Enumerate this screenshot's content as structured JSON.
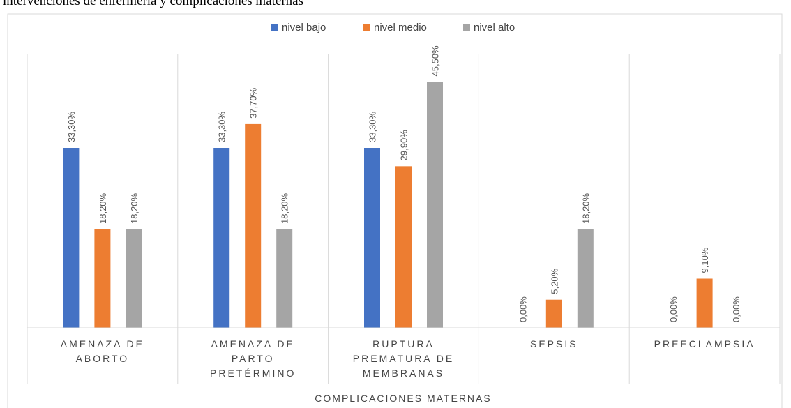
{
  "header": {
    "text": "intervenciones de enfermería y complicaciones maternas"
  },
  "chart_data": {
    "type": "bar",
    "xlabel": "COMPLICACIONES MATERNAS",
    "ylim": [
      0,
      0.5
    ],
    "grid": false,
    "legend_position": "top",
    "categories": [
      [
        "AMENAZA DE",
        "ABORTO"
      ],
      [
        "AMENAZA DE",
        "PARTO",
        "PRETÉRMINO"
      ],
      [
        "RUPTURA",
        "PREMATURA DE",
        "MEMBRANAS"
      ],
      [
        "SEPSIS"
      ],
      [
        "PREECLAMPSIA"
      ]
    ],
    "series": [
      {
        "name": "nivel bajo",
        "color": "#4472C4",
        "values": [
          0.333,
          0.333,
          0.333,
          0.0,
          0.0
        ],
        "labels": [
          "33,30%",
          "33,30%",
          "33,30%",
          "0,00%",
          "0,00%"
        ]
      },
      {
        "name": "nivel medio",
        "color": "#ED7D31",
        "values": [
          0.182,
          0.377,
          0.299,
          0.052,
          0.091
        ],
        "labels": [
          "18,20%",
          "37,70%",
          "29,90%",
          "5,20%",
          "9,10%"
        ]
      },
      {
        "name": "nivel alto",
        "color": "#A5A5A5",
        "values": [
          0.182,
          0.182,
          0.455,
          0.182,
          0.0
        ],
        "labels": [
          "18,20%",
          "18,20%",
          "45,50%",
          "18,20%",
          "0,00%"
        ]
      }
    ]
  }
}
